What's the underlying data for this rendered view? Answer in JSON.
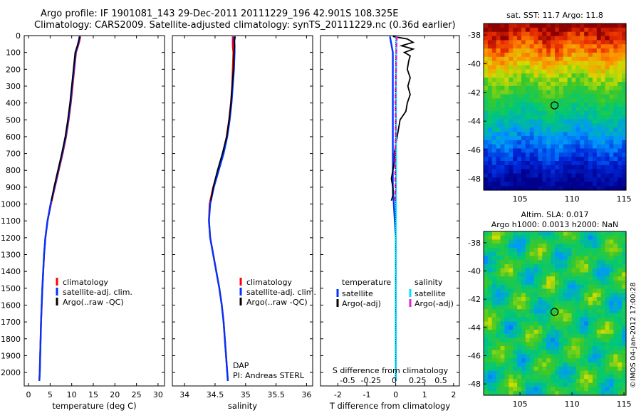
{
  "header": {
    "line1": "Argo profile: IF 1901081_143 29-Dec-2011 20111229_196 42.901S 108.325E",
    "line2": "Climatology: CARS2009. Satellite-adjusted climatology: synTS_20111229.nc (0.36d earlier)"
  },
  "credit": "©IMOS 04-Jan-2012 17:00:28",
  "colors": {
    "climatology": "#ff0000",
    "satellite": "#0033ff",
    "argo": "#000000",
    "salinity_sat": "#00e5ff",
    "salinity_argo": "#e020e0"
  },
  "chart_data": [
    {
      "type": "line",
      "id": "temperature",
      "xlabel": "temperature (deg C)",
      "ylabel": "",
      "xlim": [
        -1,
        31.5
      ],
      "ylim": [
        0,
        2080
      ],
      "xticks": [
        0,
        5,
        10,
        15,
        20,
        25,
        30
      ],
      "yticks": [
        0,
        100,
        200,
        300,
        400,
        500,
        600,
        700,
        800,
        900,
        1000,
        1100,
        1200,
        1300,
        1400,
        1500,
        1600,
        1700,
        1800,
        1900,
        2000
      ],
      "legend": [
        "climatology",
        "satellite-adj. clim.",
        "Argo(..raw -QC)"
      ],
      "series": [
        {
          "name": "climatology",
          "color": "#ff0000",
          "depth": [
            5,
            30,
            60,
            100,
            200,
            300,
            400,
            500,
            600,
            700,
            800,
            900,
            1000,
            1100,
            1200,
            1300,
            1400,
            1500,
            1600,
            1700,
            1800,
            1900,
            2000,
            2050
          ],
          "values": [
            12.0,
            11.8,
            11.5,
            11.0,
            10.6,
            10.2,
            9.8,
            9.3,
            8.7,
            7.9,
            7.0,
            6.1,
            5.2,
            4.4,
            3.9,
            3.6,
            3.4,
            3.2,
            3.05,
            2.9,
            2.8,
            2.7,
            2.6,
            2.5
          ]
        },
        {
          "name": "satellite",
          "color": "#0033ff",
          "depth": [
            5,
            30,
            60,
            100,
            200,
            300,
            400,
            500,
            600,
            700,
            800,
            900,
            1000,
            1100,
            1200,
            1300,
            1400,
            1500,
            1600,
            1700,
            1800,
            1900,
            2000,
            2050
          ],
          "values": [
            11.8,
            11.7,
            11.4,
            10.9,
            10.5,
            10.1,
            9.7,
            9.2,
            8.6,
            7.8,
            6.9,
            6.0,
            5.1,
            4.4,
            3.9,
            3.6,
            3.4,
            3.2,
            3.05,
            2.9,
            2.8,
            2.7,
            2.6,
            2.5
          ]
        },
        {
          "name": "argo",
          "color": "#000000",
          "depth": [
            5,
            30,
            60,
            100,
            200,
            300,
            400,
            500,
            600,
            700,
            800,
            900,
            980
          ],
          "values": [
            11.9,
            11.6,
            11.3,
            10.8,
            10.4,
            10.0,
            9.6,
            9.1,
            8.5,
            7.7,
            6.8,
            5.9,
            5.3
          ]
        }
      ]
    },
    {
      "type": "line",
      "id": "salinity",
      "xlabel": "salinity",
      "ylabel": "",
      "xlim": [
        33.8,
        36.1
      ],
      "ylim": [
        0,
        2080
      ],
      "xticks": [
        34,
        34.5,
        35,
        35.5,
        36
      ],
      "legend": [
        "climatology",
        "satellite-adj. clim.",
        "Argo(..raw -QC)"
      ],
      "annotation": {
        "line1": "DAP",
        "line2": "PI: Andreas STERL"
      },
      "series": [
        {
          "name": "climatology",
          "color": "#ff0000",
          "depth": [
            5,
            30,
            60,
            100,
            200,
            300,
            400,
            500,
            600,
            700,
            800,
            900,
            1000,
            1100,
            1200,
            1300,
            1400,
            1500,
            1600,
            1700,
            1800,
            1900,
            2000,
            2050
          ],
          "values": [
            34.79,
            34.79,
            34.79,
            34.8,
            34.79,
            34.78,
            34.76,
            34.73,
            34.69,
            34.63,
            34.55,
            34.47,
            34.41,
            34.4,
            34.42,
            34.47,
            34.52,
            34.57,
            34.61,
            34.64,
            34.66,
            34.68,
            34.7,
            34.71
          ]
        },
        {
          "name": "satellite",
          "color": "#0033ff",
          "depth": [
            5,
            30,
            60,
            100,
            200,
            300,
            400,
            500,
            600,
            700,
            800,
            900,
            1000,
            1100,
            1200,
            1300,
            1400,
            1500,
            1600,
            1700,
            1800,
            1900,
            2000,
            2050
          ],
          "values": [
            34.81,
            34.81,
            34.82,
            34.82,
            34.81,
            34.79,
            34.77,
            34.74,
            34.7,
            34.64,
            34.56,
            34.48,
            34.42,
            34.4,
            34.42,
            34.47,
            34.52,
            34.57,
            34.61,
            34.64,
            34.66,
            34.68,
            34.7,
            34.71
          ]
        },
        {
          "name": "argo",
          "color": "#000000",
          "depth": [
            5,
            30,
            60,
            100,
            200,
            300,
            400,
            500,
            600,
            700,
            800,
            900,
            980
          ],
          "values": [
            34.83,
            34.82,
            34.82,
            34.81,
            34.8,
            34.78,
            34.76,
            34.73,
            34.69,
            34.62,
            34.54,
            34.47,
            34.43
          ]
        }
      ]
    },
    {
      "type": "line",
      "id": "difference",
      "xlabel": "T difference from climatology",
      "xlabel2": "S difference from climatology",
      "xlim": [
        -2.6,
        2.2
      ],
      "ylim": [
        0,
        2080
      ],
      "xticks": [
        -2,
        -1,
        0,
        1,
        2
      ],
      "xtick_labels": [
        "-2",
        "-1",
        "0",
        "1",
        "2"
      ],
      "sticks": [
        -0.5,
        -0.25,
        0,
        0.25,
        0.5
      ],
      "stick_labels": [
        "-0.5",
        "-0.25",
        "0",
        "0.25",
        "0.5"
      ],
      "legend_left": {
        "title": "temperature",
        "items": [
          "satellite",
          "Argo(-adj)"
        ]
      },
      "legend_right": {
        "title": "salinity",
        "items": [
          "satellite",
          "Argo(-adj)"
        ]
      },
      "series": [
        {
          "name": "T satellite",
          "color": "#0033ff",
          "depth": [
            5,
            100,
            300,
            600,
            900,
            1200,
            1500,
            2050
          ],
          "values": [
            -0.2,
            -0.1,
            -0.1,
            -0.1,
            -0.1,
            0,
            0,
            0
          ]
        },
        {
          "name": "T Argo",
          "color": "#000000",
          "depth": [
            5,
            20,
            40,
            60,
            80,
            100,
            120,
            150,
            200,
            250,
            300,
            350,
            400,
            450,
            500,
            550,
            600,
            650,
            700,
            750,
            800,
            850,
            900,
            950,
            980
          ],
          "values": [
            -0.1,
            0.4,
            0.6,
            0.2,
            0.6,
            0.3,
            0.5,
            0.45,
            0.4,
            0.5,
            0.42,
            0.5,
            0.4,
            0.35,
            0.15,
            0.1,
            0.05,
            0.0,
            -0.05,
            -0.05,
            -0.1,
            -0.15,
            -0.1,
            -0.1,
            -0.15
          ]
        },
        {
          "name": "S satellite",
          "color": "#00e5ff",
          "depth": [
            5,
            100,
            300,
            600,
            900,
            1200,
            1500,
            2050
          ],
          "values": [
            0.02,
            0.02,
            0.01,
            0.01,
            0.01,
            0.0,
            0.0,
            0.0
          ]
        },
        {
          "name": "S Argo",
          "color": "#e020e0",
          "depth": [
            5,
            100,
            200,
            300,
            400,
            500,
            600,
            700,
            800,
            900,
            980
          ],
          "values": [
            0.04,
            0.02,
            0.01,
            0.0,
            -0.01,
            0.0,
            0.0,
            -0.02,
            -0.02,
            -0.01,
            -0.03
          ]
        }
      ]
    },
    {
      "type": "heatmap",
      "id": "sst_map",
      "title": "sat. SST: 11.7 Argo: 11.8",
      "xlim": [
        101.5,
        115.2
      ],
      "ylim": [
        -48.8,
        -37.2
      ],
      "xticks": [
        105,
        110,
        115
      ],
      "yticks": [
        -38,
        -40,
        -42,
        -44,
        -46,
        -48
      ],
      "marker": {
        "lon": 108.325,
        "lat": -42.901
      }
    },
    {
      "type": "heatmap",
      "id": "sla_map",
      "title": "Altim. SLA: 0.017",
      "title2": "Argo h1000: 0.0013 h2000: NaN",
      "xlim": [
        101.5,
        115.2
      ],
      "ylim": [
        -48.8,
        -37.2
      ],
      "xticks": [
        105,
        110,
        115
      ],
      "yticks": [
        -38,
        -40,
        -42,
        -44,
        -46,
        -48
      ],
      "marker": {
        "lon": 108.325,
        "lat": -42.901
      }
    }
  ]
}
